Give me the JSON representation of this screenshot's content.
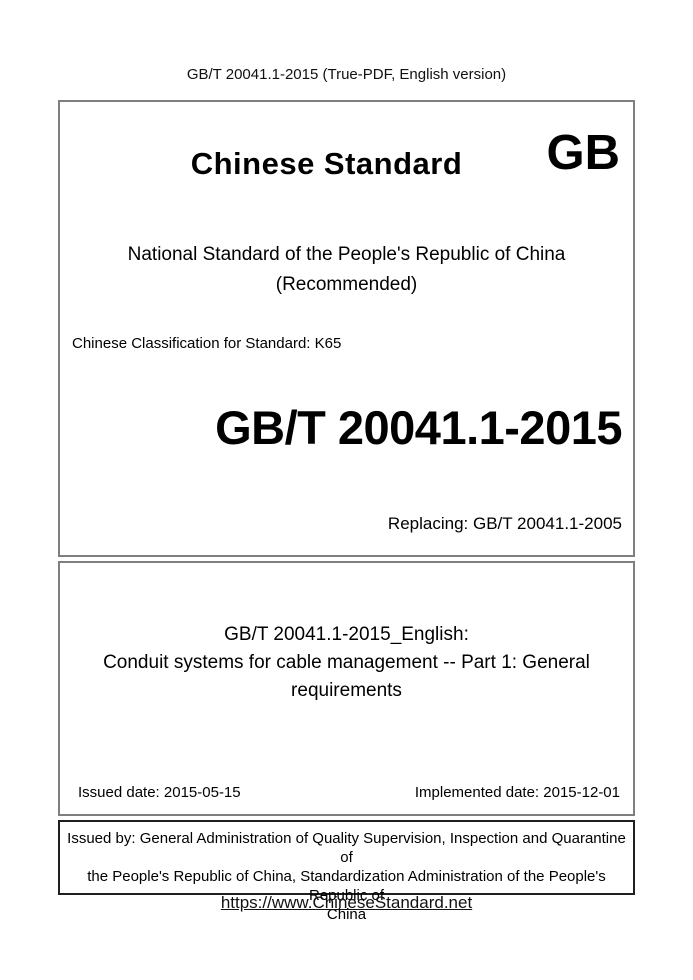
{
  "header": {
    "title": "GB/T 20041.1-2015 (True-PDF, English version)"
  },
  "cover": {
    "brand_title": "Chinese Standard",
    "gb_logo": "GB",
    "national_line1": "National Standard of the People's Republic of China",
    "national_line2": "(Recommended)",
    "classification": "Chinese Classification for Standard: K65",
    "standard_number": "GB/T 20041.1-2015",
    "replacing": "Replacing: GB/T 20041.1-2005"
  },
  "title_block": {
    "lines": [
      "GB/T 20041.1-2015_English:",
      "Conduit systems for cable management -- Part 1: General",
      "requirements"
    ]
  },
  "dates": {
    "issued_label": "Issued date: 2015-05-15",
    "implemented_label": "Implemented date: 2015-12-01"
  },
  "issuer": {
    "lines": [
      "Issued by: General Administration of Quality Supervision, Inspection and Quarantine of",
      "the People's Republic of China, Standardization Administration of the People's Republic of",
      "China"
    ]
  },
  "footer": {
    "url": "https://www.ChineseStandard.net"
  },
  "colors": {
    "background": "#ffffff",
    "text": "#000000",
    "box_border_gray": "#7f7f7f",
    "box_border_black": "#1f1f1f"
  }
}
